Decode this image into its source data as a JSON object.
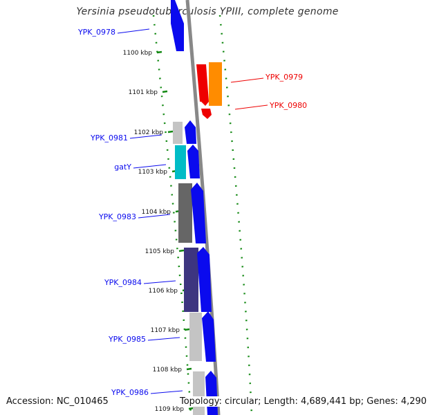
{
  "title": "Yersinia pseudotuberculosis YPIII, complete genome",
  "accession": "Accession: NC_010465",
  "topology": "Topology: circular; Length: 4,689,441 bp; Genes: 4,290",
  "colors": {
    "blue": "#0a0aee",
    "red": "#ee0000",
    "orange": "#ff8c00",
    "green_tick": "#118811",
    "backbone": "#888888",
    "cyan": "#00bcc6",
    "dark_gray": "#666666",
    "purple": "#3d3580",
    "light_gray": "#c4c4c4"
  },
  "ticks": [
    "1100 kbp",
    "1101 kbp",
    "1102 kbp",
    "1103 kbp",
    "1104 kbp",
    "1105 kbp",
    "1106 kbp",
    "1107 kbp",
    "1108 kbp",
    "1109 kbp"
  ],
  "labels": {
    "ypk_0978": "YPK_0978",
    "ypk_0979": "YPK_0979",
    "ypk_0980": "YPK_0980",
    "ypk_0981": "YPK_0981",
    "gaty": "gatY",
    "ypk_0983": "YPK_0983",
    "ypk_0984": "YPK_0984",
    "ypk_0985": "YPK_0985",
    "ypk_0986": "YPK_0986"
  }
}
